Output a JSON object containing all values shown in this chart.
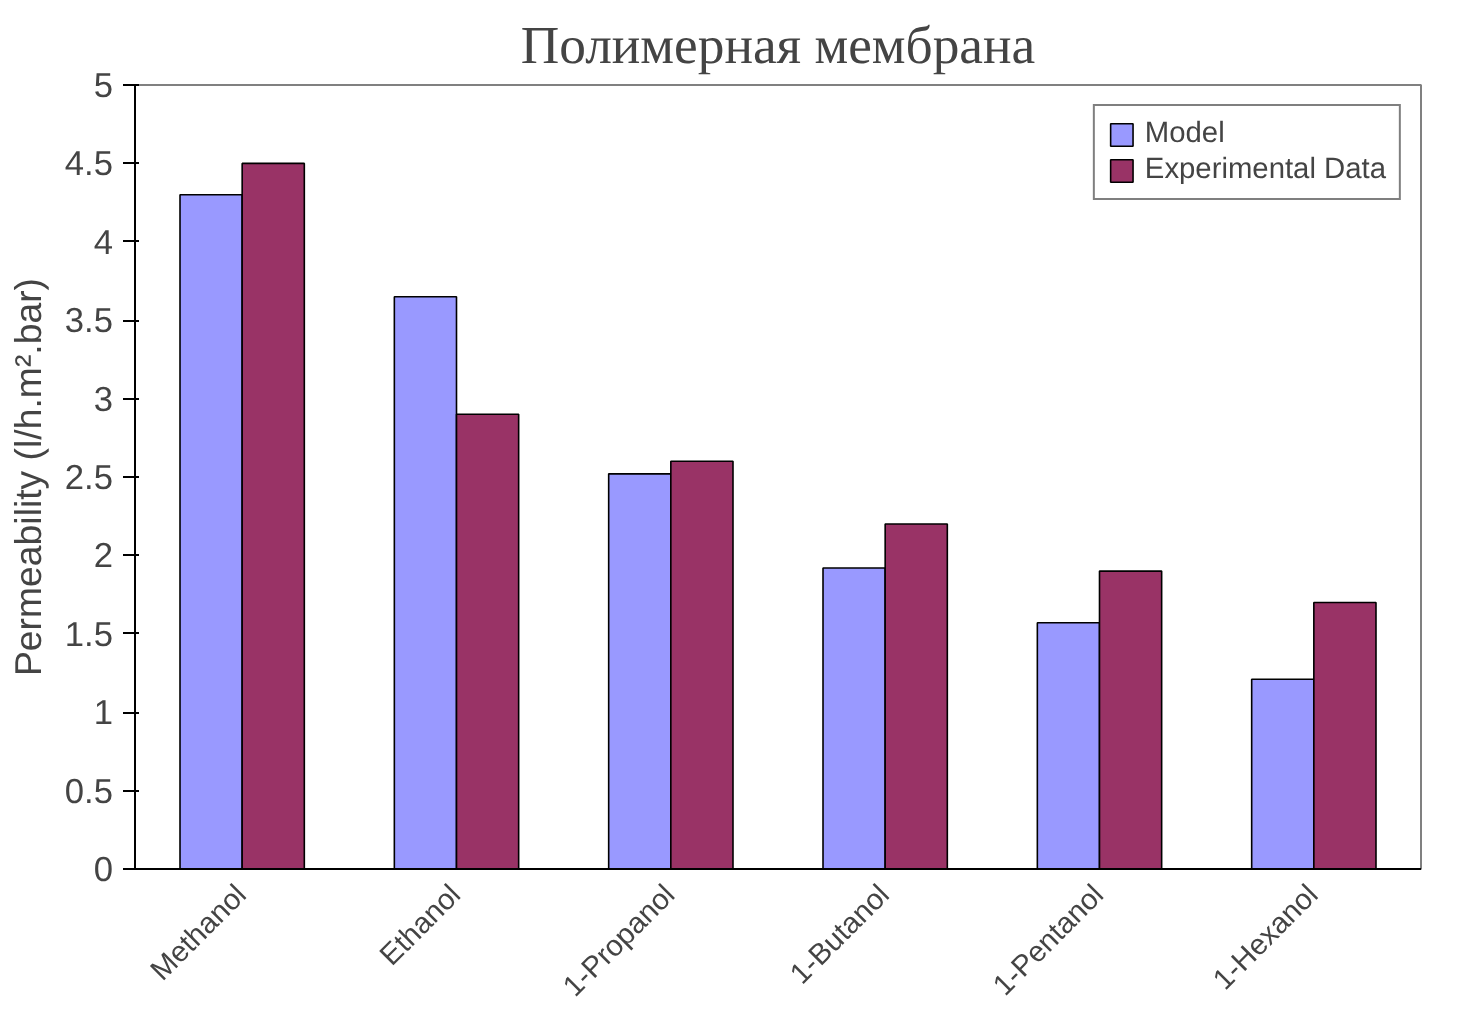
{
  "chart_data": {
    "type": "bar",
    "title": "Полимерная мембрана",
    "ylabel": "Permeability (l/h.m².bar)",
    "categories": [
      "Methanol",
      "Ethanol",
      "1-Propanol",
      "1-Butanol",
      "1-Pentanol",
      "1-Hexanol"
    ],
    "series": [
      {
        "name": "Model",
        "color": "#9999ff",
        "values": [
          4.3,
          3.65,
          2.52,
          1.92,
          1.57,
          1.21
        ]
      },
      {
        "name": "Experimental Data",
        "color": "#993366",
        "values": [
          4.5,
          2.9,
          2.6,
          2.2,
          1.9,
          1.7
        ]
      }
    ],
    "ylim": [
      0,
      5
    ],
    "yticks": [
      0,
      0.5,
      1,
      1.5,
      2,
      2.5,
      3,
      3.5,
      4,
      4.5,
      5
    ],
    "grid": false,
    "legend": "top right"
  }
}
